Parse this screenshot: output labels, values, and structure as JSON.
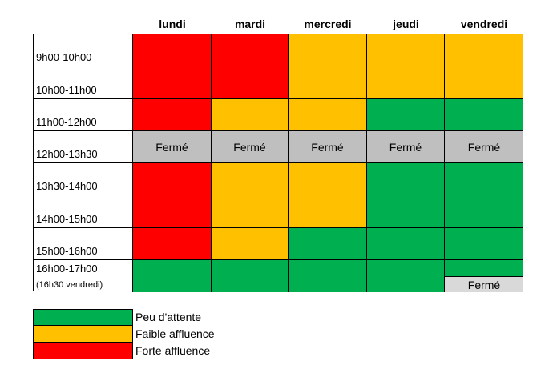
{
  "colors": {
    "forte": "#FF0000",
    "faible": "#FFC000",
    "peu": "#00B050",
    "ferme": "#BFBFBF",
    "ferme_light": "#D9D9D9"
  },
  "days": [
    "lundi",
    "mardi",
    "mercredi",
    "jeudi",
    "vendredi"
  ],
  "rows": [
    {
      "label": "9h00-10h00",
      "cells": [
        "forte",
        "forte",
        "faible",
        "faible",
        "faible"
      ]
    },
    {
      "label": "10h00-11h00",
      "cells": [
        "forte",
        "forte",
        "faible",
        "faible",
        "faible"
      ]
    },
    {
      "label": "11h00-12h00",
      "cells": [
        "forte",
        "faible",
        "faible",
        "peu",
        "peu"
      ]
    },
    {
      "label": "12h00-13h30",
      "cells": [
        "ferme",
        "ferme",
        "ferme",
        "ferme",
        "ferme"
      ]
    },
    {
      "label": "13h30-14h00",
      "cells": [
        "forte",
        "faible",
        "faible",
        "peu",
        "peu"
      ]
    },
    {
      "label": "14h00-15h00",
      "cells": [
        "forte",
        "faible",
        "faible",
        "peu",
        "peu"
      ]
    },
    {
      "label": "15h00-16h00",
      "cells": [
        "forte",
        "faible",
        "peu",
        "peu",
        "peu"
      ]
    },
    {
      "label": "16h00-17h00",
      "sublabel": "(16h30 vendredi)",
      "cells": [
        "peu",
        "peu",
        "peu",
        "peu",
        "peu_ferme"
      ]
    }
  ],
  "closed_text": "Fermé",
  "legend": [
    {
      "key": "peu",
      "label": "Peu d'attente"
    },
    {
      "key": "faible",
      "label": "Faible affluence"
    },
    {
      "key": "forte",
      "label": "Forte affluence"
    }
  ]
}
